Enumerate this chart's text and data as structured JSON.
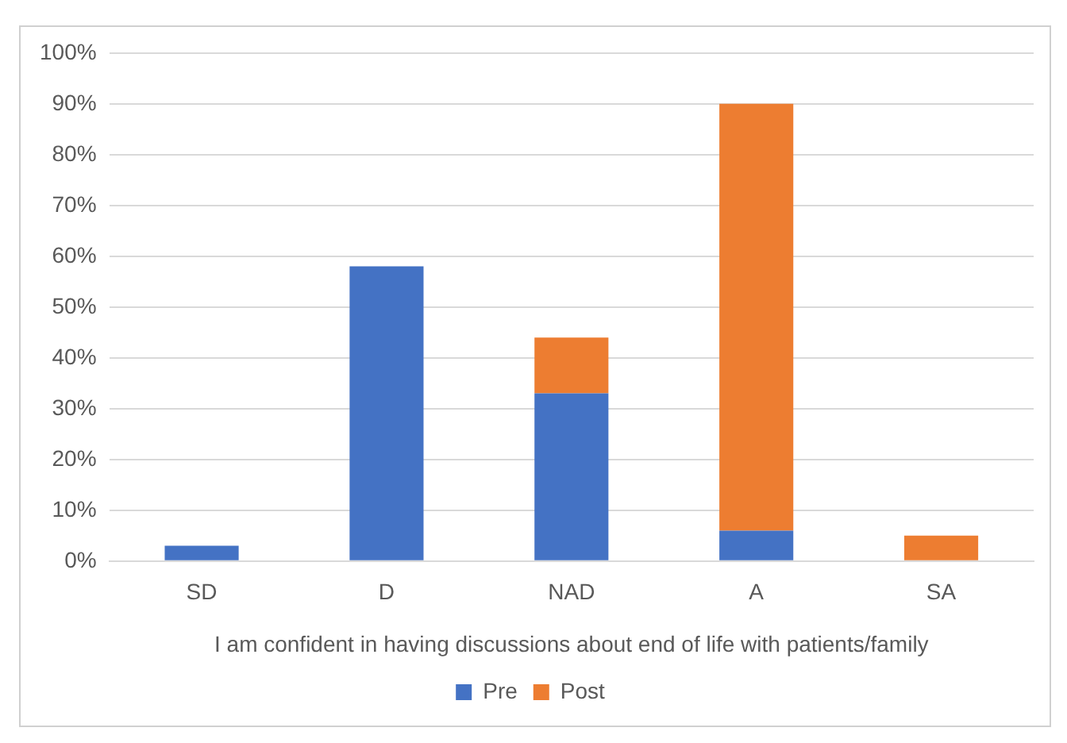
{
  "chart_data": {
    "type": "bar",
    "stacked": true,
    "xlabel": "I am confident in having discussions about end of life with patients/family",
    "categories": [
      "SD",
      "D",
      "NAD",
      "A",
      "SA"
    ],
    "series": [
      {
        "name": "Pre",
        "color": "#4472c4",
        "values": [
          3,
          58,
          33,
          6,
          0
        ]
      },
      {
        "name": "Post",
        "color": "#ed7d31",
        "values": [
          0,
          0,
          11,
          84,
          5
        ]
      }
    ],
    "ylim": [
      0,
      100
    ],
    "yticks": [
      {
        "value": 0,
        "label": "0%"
      },
      {
        "value": 10,
        "label": "10%"
      },
      {
        "value": 20,
        "label": "20%"
      },
      {
        "value": 30,
        "label": "30%"
      },
      {
        "value": 40,
        "label": "40%"
      },
      {
        "value": 50,
        "label": "50%"
      },
      {
        "value": 60,
        "label": "60%"
      },
      {
        "value": 70,
        "label": "70%"
      },
      {
        "value": 80,
        "label": "80%"
      },
      {
        "value": 90,
        "label": "90%"
      },
      {
        "value": 100,
        "label": "100%"
      }
    ],
    "grid": "y",
    "legend": "bottom"
  }
}
